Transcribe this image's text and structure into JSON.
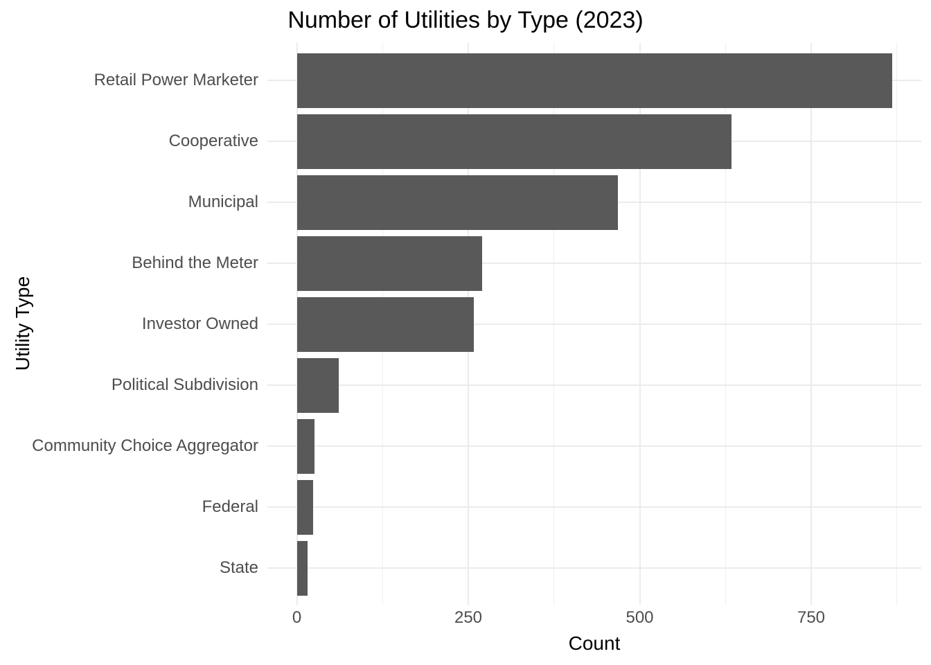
{
  "chart_data": {
    "type": "bar",
    "orientation": "horizontal",
    "title": "Number of Utilities by Type (2023)",
    "xlabel": "Count",
    "ylabel": "Utility Type",
    "categories": [
      "Retail Power Marketer",
      "Cooperative",
      "Municipal",
      "Behind the Meter",
      "Investor Owned",
      "Political Subdivision",
      "Community Choice Aggregator",
      "Federal",
      "State"
    ],
    "values": [
      868,
      634,
      468,
      270,
      258,
      61,
      26,
      24,
      16
    ],
    "xlim": [
      0,
      875
    ],
    "x_major_ticks": [
      0,
      250,
      500,
      750
    ],
    "x_major_tick_labels": [
      "0",
      "250",
      "500",
      "750"
    ],
    "x_minor_ticks": [
      125,
      375,
      625,
      875
    ],
    "grid": "vertical major+minor, horizontal major at category centers",
    "legend_position": "none",
    "bar_color": "#595959",
    "gridline_color": "#ebebeb",
    "axis_text_color": "#4d4d4d",
    "title_color": "#000000",
    "background_color": "#ffffff"
  }
}
